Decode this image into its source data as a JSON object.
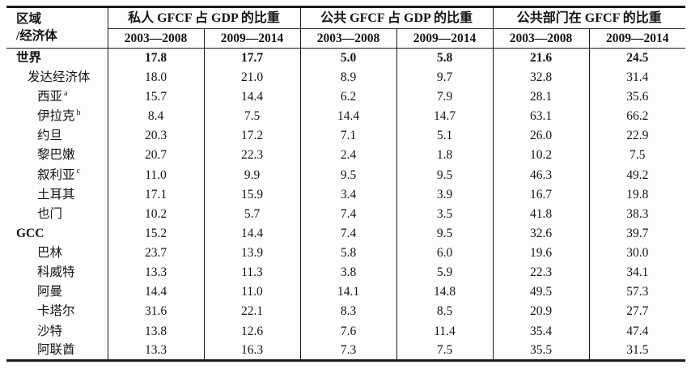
{
  "table": {
    "corner": {
      "line1": "区域",
      "line2": "/经济体"
    },
    "groups": [
      {
        "label": "私人 GFCF 占 GDP 的比重"
      },
      {
        "label": "公共 GFCF 占 GDP 的比重"
      },
      {
        "label": "公共部门在 GFCF 的比重"
      }
    ],
    "period_headers": [
      "2003—2008",
      "2009—2014"
    ],
    "rows": [
      {
        "label": "世界",
        "sup": "",
        "indent": 0,
        "bold_label": true,
        "bold_values": true,
        "values": [
          "17.8",
          "17.7",
          "5.0",
          "5.8",
          "21.6",
          "24.5"
        ]
      },
      {
        "label": "发达经济体",
        "sup": "",
        "indent": 1,
        "bold_label": false,
        "bold_values": false,
        "values": [
          "18.0",
          "21.0",
          "8.9",
          "9.7",
          "32.8",
          "31.4"
        ]
      },
      {
        "label": "西亚",
        "sup": "a",
        "indent": 2,
        "bold_label": false,
        "bold_values": false,
        "values": [
          "15.7",
          "14.4",
          "6.2",
          "7.9",
          "28.1",
          "35.6"
        ]
      },
      {
        "label": "伊拉克",
        "sup": "b",
        "indent": 2,
        "bold_label": false,
        "bold_values": false,
        "values": [
          "8.4",
          "7.5",
          "14.4",
          "14.7",
          "63.1",
          "66.2"
        ]
      },
      {
        "label": "约旦",
        "sup": "",
        "indent": 2,
        "bold_label": false,
        "bold_values": false,
        "values": [
          "20.3",
          "17.2",
          "7.1",
          "5.1",
          "26.0",
          "22.9"
        ]
      },
      {
        "label": "黎巴嫩",
        "sup": "",
        "indent": 2,
        "bold_label": false,
        "bold_values": false,
        "values": [
          "20.7",
          "22.3",
          "2.4",
          "1.8",
          "10.2",
          "7.5"
        ]
      },
      {
        "label": "叙利亚",
        "sup": "c",
        "indent": 2,
        "bold_label": false,
        "bold_values": false,
        "values": [
          "11.0",
          "9.9",
          "9.5",
          "9.5",
          "46.3",
          "49.2"
        ]
      },
      {
        "label": "土耳其",
        "sup": "",
        "indent": 2,
        "bold_label": false,
        "bold_values": false,
        "values": [
          "17.1",
          "15.9",
          "3.4",
          "3.9",
          "16.7",
          "19.8"
        ]
      },
      {
        "label": "也门",
        "sup": "",
        "indent": 2,
        "bold_label": false,
        "bold_values": false,
        "values": [
          "10.2",
          "5.7",
          "7.4",
          "3.5",
          "41.8",
          "38.3"
        ]
      },
      {
        "label": "GCC",
        "sup": "",
        "indent": 0,
        "bold_label": true,
        "bold_values": false,
        "values": [
          "15.2",
          "14.4",
          "7.4",
          "9.5",
          "32.6",
          "39.7"
        ]
      },
      {
        "label": "巴林",
        "sup": "",
        "indent": 2,
        "bold_label": false,
        "bold_values": false,
        "values": [
          "23.7",
          "13.9",
          "5.8",
          "6.0",
          "19.6",
          "30.0"
        ]
      },
      {
        "label": "科威特",
        "sup": "",
        "indent": 2,
        "bold_label": false,
        "bold_values": false,
        "values": [
          "13.3",
          "11.3",
          "3.8",
          "5.9",
          "22.3",
          "34.1"
        ]
      },
      {
        "label": "阿曼",
        "sup": "",
        "indent": 2,
        "bold_label": false,
        "bold_values": false,
        "values": [
          "14.4",
          "11.0",
          "14.1",
          "14.8",
          "49.5",
          "57.3"
        ]
      },
      {
        "label": "卡塔尔",
        "sup": "",
        "indent": 2,
        "bold_label": false,
        "bold_values": false,
        "values": [
          "31.6",
          "22.1",
          "8.3",
          "8.5",
          "20.9",
          "27.7"
        ]
      },
      {
        "label": "沙特",
        "sup": "",
        "indent": 2,
        "bold_label": false,
        "bold_values": false,
        "values": [
          "13.8",
          "12.6",
          "7.6",
          "11.4",
          "35.4",
          "47.4"
        ]
      },
      {
        "label": "阿联酋",
        "sup": "",
        "indent": 2,
        "bold_label": false,
        "bold_values": false,
        "values": [
          "13.3",
          "16.3",
          "7.3",
          "7.5",
          "35.5",
          "31.5"
        ]
      }
    ]
  }
}
